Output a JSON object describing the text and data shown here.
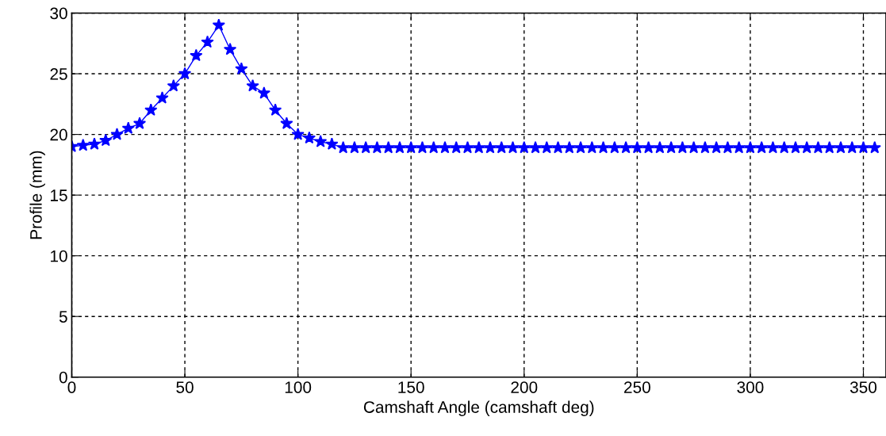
{
  "chart_data": {
    "type": "line",
    "xlabel": "Camshaft Angle (camshaft deg)",
    "ylabel": "Profile (mm)",
    "x": [
      0,
      5,
      10,
      15,
      20,
      25,
      30,
      35,
      40,
      45,
      50,
      55,
      60,
      65,
      70,
      75,
      80,
      85,
      90,
      95,
      100,
      105,
      110,
      115,
      120,
      125,
      130,
      135,
      140,
      145,
      150,
      155,
      160,
      165,
      170,
      175,
      180,
      185,
      190,
      195,
      200,
      205,
      210,
      215,
      220,
      225,
      230,
      235,
      240,
      245,
      250,
      255,
      260,
      265,
      270,
      275,
      280,
      285,
      290,
      295,
      300,
      305,
      310,
      315,
      320,
      325,
      330,
      335,
      340,
      345,
      350,
      355
    ],
    "series": [
      {
        "color": "#0000ff",
        "values": [
          19,
          19.1,
          19.2,
          19.5,
          20,
          20.5,
          20.9,
          22,
          23,
          24,
          25,
          26.5,
          27.6,
          29,
          27,
          25.4,
          24,
          23.4,
          22,
          20.9,
          20,
          19.7,
          19.4,
          19.2,
          18.9,
          18.9,
          18.9,
          18.9,
          18.9,
          18.9,
          18.9,
          18.9,
          18.9,
          18.9,
          18.9,
          18.9,
          18.9,
          18.9,
          18.9,
          18.9,
          18.9,
          18.9,
          18.9,
          18.9,
          18.9,
          18.9,
          18.9,
          18.9,
          18.9,
          18.9,
          18.9,
          18.9,
          18.9,
          18.9,
          18.9,
          18.9,
          18.9,
          18.9,
          18.9,
          18.9,
          18.9,
          18.9,
          18.9,
          18.9,
          18.9,
          18.9,
          18.9,
          18.9,
          18.9,
          18.9,
          18.9,
          18.9
        ]
      }
    ],
    "xlim": [
      0,
      360
    ],
    "ylim": [
      0,
      30
    ],
    "xticks": [
      0,
      50,
      100,
      150,
      200,
      250,
      300,
      350
    ],
    "yticks": [
      0,
      5,
      10,
      15,
      20,
      25,
      30
    ],
    "grid": true,
    "marker": "star",
    "line_style": "solid"
  }
}
